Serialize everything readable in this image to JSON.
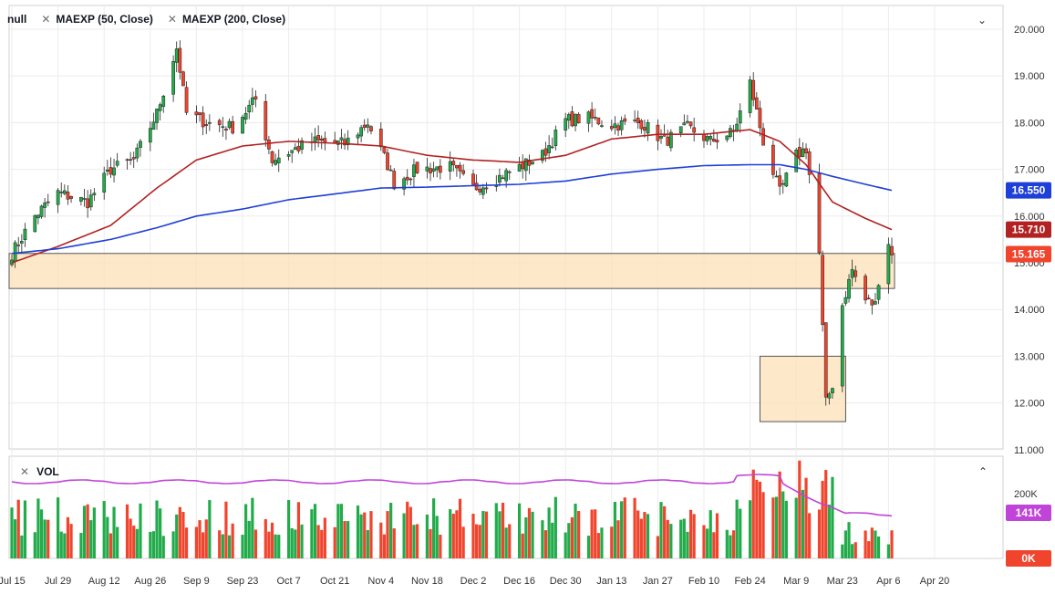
{
  "legend": {
    "symbol": "null",
    "indicator1": "MAEXP (50, Close)",
    "indicator2": "MAEXP (200, Close)",
    "collapse_icon": "chevron-down-icon"
  },
  "volume_pane": {
    "label": "VOL",
    "collapse_icon": "chevron-up-icon"
  },
  "colors": {
    "up": "#22ab4a",
    "down": "#f0442d",
    "ema50": "#b22222",
    "ema200": "#1e3fd8",
    "vol_ma": "#c044d8",
    "zone_fill": "#fde3bb",
    "zone_stroke": "#555555"
  },
  "chart_data": {
    "type": "candlestick",
    "y_ticks": [
      "20.000",
      "19.000",
      "18.000",
      "17.000",
      "16.000",
      "15.000",
      "14.000",
      "13.000",
      "12.000",
      "11.000"
    ],
    "ylim": [
      11.0,
      20.0
    ],
    "x_ticks": [
      "Jul 15",
      "Jul 29",
      "Aug 12",
      "Aug 26",
      "Sep 9",
      "Sep 23",
      "Oct 7",
      "Oct 21",
      "Nov 4",
      "Nov 18",
      "Dec 2",
      "Dec 16",
      "Dec 30",
      "Jan 13",
      "Jan 27",
      "Feb 10",
      "Feb 24",
      "Mar 9",
      "Mar 23",
      "Apr 6",
      "Apr 20"
    ],
    "price_labels": {
      "ema200": "16.550",
      "ema50": "15.710",
      "last": "15.165"
    },
    "zones": [
      {
        "from": "Jul 15",
        "to": "Apr 7",
        "low": 14.45,
        "high": 15.2
      },
      {
        "from": "Feb 27",
        "to": "Mar 24",
        "low": 11.6,
        "high": 13.0
      }
    ],
    "volume_ticks": [
      "200K",
      "0K"
    ],
    "volume_labels": {
      "ma": "141K",
      "zero": "0K"
    },
    "ohlc_anchors": {
      "x": [
        "Jul 15",
        "Jul 22",
        "Jul 29",
        "Aug 7",
        "Aug 14",
        "Aug 21",
        "Aug 28",
        "Sep 3",
        "Sep 6",
        "Sep 12",
        "Sep 20",
        "Sep 27",
        "Oct 2",
        "Oct 14",
        "Oct 24",
        "Oct 31",
        "Nov 6",
        "Nov 8",
        "Nov 15",
        "Nov 25",
        "Dec 2",
        "Dec 6",
        "Dec 16",
        "Dec 23",
        "Dec 30",
        "Jan 6",
        "Jan 13",
        "Jan 22",
        "Jan 29",
        "Feb 5",
        "Feb 12",
        "Feb 19",
        "Feb 24",
        "Feb 28",
        "Mar 4",
        "Mar 9",
        "Mar 12",
        "Mar 16",
        "Mar 18",
        "Mar 20",
        "Mar 23",
        "Mar 26",
        "Mar 30",
        "Apr 2",
        "Apr 3",
        "Apr 6",
        "Apr 7"
      ],
      "close": [
        15.2,
        16.0,
        16.5,
        16.3,
        17.0,
        17.2,
        18.2,
        19.6,
        18.2,
        18.0,
        17.9,
        18.5,
        17.2,
        17.6,
        17.55,
        18.0,
        17.1,
        16.7,
        17.0,
        17.05,
        16.6,
        16.7,
        17.05,
        17.3,
        18.05,
        18.1,
        17.95,
        18.0,
        17.6,
        17.9,
        17.6,
        17.8,
        18.85,
        17.6,
        16.5,
        17.3,
        17.45,
        15.2,
        12.0,
        12.4,
        14.1,
        14.85,
        14.2,
        14.1,
        14.65,
        15.45,
        15.165
      ]
    },
    "ema50_anchors": {
      "x": [
        "Jul 15",
        "Jul 29",
        "Aug 14",
        "Aug 28",
        "Sep 9",
        "Sep 23",
        "Oct 7",
        "Oct 24",
        "Nov 4",
        "Nov 18",
        "Dec 2",
        "Dec 16",
        "Dec 30",
        "Jan 13",
        "Jan 27",
        "Feb 10",
        "Feb 24",
        "Mar 4",
        "Mar 12",
        "Mar 20",
        "Mar 30",
        "Apr 7"
      ],
      "y": [
        15.0,
        15.35,
        15.8,
        16.6,
        17.2,
        17.5,
        17.6,
        17.55,
        17.5,
        17.3,
        17.2,
        17.15,
        17.3,
        17.65,
        17.75,
        17.75,
        17.85,
        17.6,
        17.1,
        16.3,
        15.95,
        15.71
      ]
    },
    "ema200_anchors": {
      "x": [
        "Jul 15",
        "Jul 29",
        "Aug 14",
        "Aug 28",
        "Sep 9",
        "Sep 23",
        "Oct 7",
        "Oct 24",
        "Nov 4",
        "Nov 18",
        "Dec 2",
        "Dec 16",
        "Dec 30",
        "Jan 13",
        "Jan 27",
        "Feb 10",
        "Feb 24",
        "Mar 4",
        "Mar 12",
        "Mar 20",
        "Mar 30",
        "Apr 7"
      ],
      "y": [
        15.2,
        15.3,
        15.5,
        15.75,
        16.0,
        16.15,
        16.35,
        16.5,
        16.6,
        16.62,
        16.65,
        16.68,
        16.75,
        16.9,
        17.0,
        17.08,
        17.1,
        17.1,
        17.0,
        16.85,
        16.68,
        16.55
      ]
    }
  }
}
